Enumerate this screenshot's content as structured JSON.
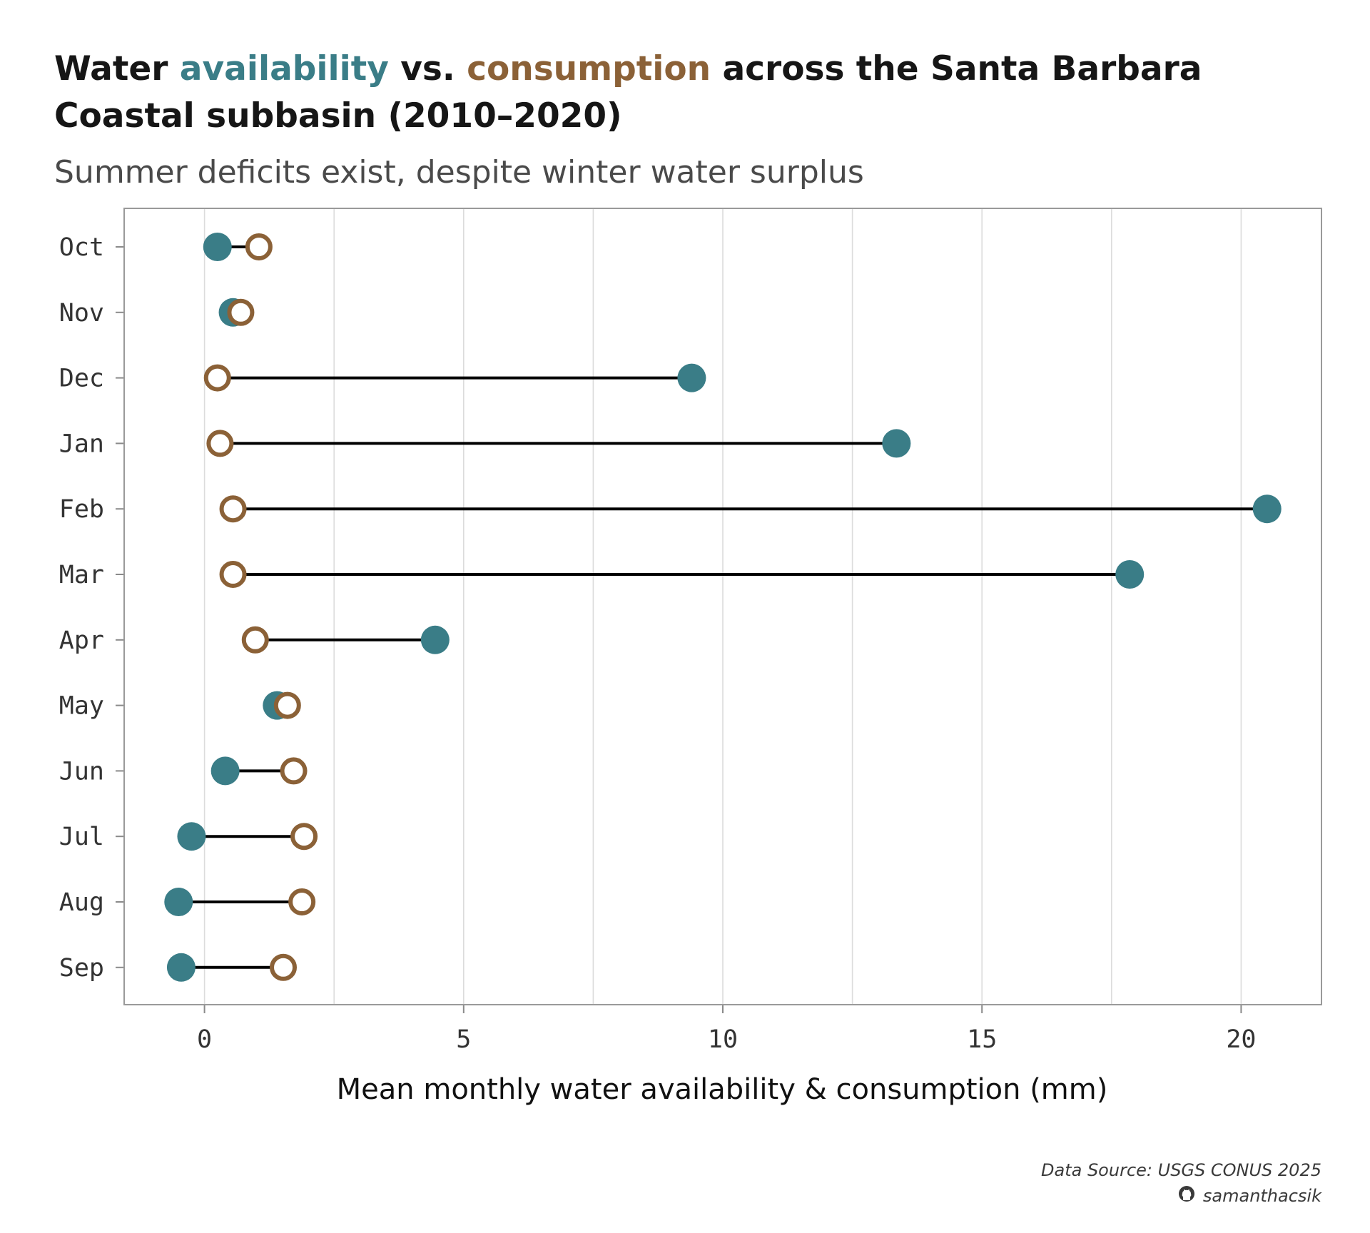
{
  "title": {
    "part1": "Water ",
    "availability": "availability",
    "part2": " vs. ",
    "consumption": "consumption",
    "part3": " across the Santa Barbara",
    "line2": "Coastal subbasin (2010–2020)"
  },
  "subtitle": "Summer deficits exist, despite winter water surplus",
  "caption": {
    "source": "Data Source: USGS CONUS 2025",
    "github_icon": "github-icon",
    "handle": "samanthacsik"
  },
  "colors": {
    "availability": "#3a7d87",
    "consumption": "#8b6137",
    "segment": "#000000",
    "grid": "#dcdcdc",
    "panel_border": "#9a9a9a"
  },
  "chart_data": {
    "type": "dumbbell",
    "categories": [
      "Oct",
      "Nov",
      "Dec",
      "Jan",
      "Feb",
      "Mar",
      "Apr",
      "May",
      "Jun",
      "Jul",
      "Aug",
      "Sep"
    ],
    "series": [
      {
        "name": "availability",
        "values": [
          0.25,
          0.55,
          9.4,
          13.35,
          20.5,
          17.85,
          4.45,
          1.4,
          0.4,
          -0.25,
          -0.5,
          -0.45
        ]
      },
      {
        "name": "consumption",
        "values": [
          1.05,
          0.7,
          0.25,
          0.3,
          0.55,
          0.55,
          0.98,
          1.6,
          1.72,
          1.92,
          1.88,
          1.52
        ]
      }
    ],
    "xlabel": "Mean monthly water availability & consumption (mm)",
    "ylabel": "",
    "xlim": [
      -1.55,
      21.55
    ],
    "xticks": [
      0,
      5,
      10,
      15,
      20
    ],
    "xtick_labels": [
      "0",
      "5",
      "10",
      "15",
      "20"
    ],
    "grid": true
  }
}
